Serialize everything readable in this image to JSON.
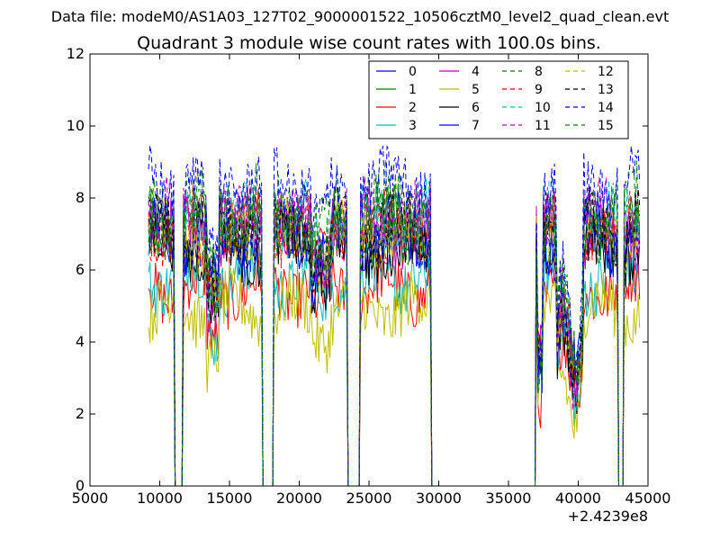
{
  "chart_data": {
    "type": "line",
    "suptitle": "Data file: modeM0/AS1A03_127T02_9000001522_10506cztM0_level2_quad_clean.evt",
    "title": "Quadrant 3 module wise count rates with 100.0s bins.",
    "xlabel": "",
    "ylabel": "",
    "x_offset_label": "+2.4239e8",
    "xlim": [
      5000,
      45000
    ],
    "ylim": [
      0,
      12
    ],
    "xticks": [
      5000,
      10000,
      15000,
      20000,
      25000,
      30000,
      35000,
      40000,
      45000
    ],
    "xtick_labels": [
      "5000",
      "10000",
      "15000",
      "20000",
      "25000",
      "30000",
      "35000",
      "40000",
      "45000"
    ],
    "yticks": [
      0,
      2,
      4,
      6,
      8,
      10,
      12
    ],
    "ytick_labels": [
      "0",
      "2",
      "4",
      "6",
      "8",
      "10",
      "12"
    ],
    "grid": false,
    "legend_position": "top-right",
    "legend_columns": 4,
    "series": [
      {
        "name": "0",
        "color": "#0000ff",
        "dashed": false,
        "base": 6.8
      },
      {
        "name": "1",
        "color": "#008000",
        "dashed": false,
        "base": 7.3
      },
      {
        "name": "2",
        "color": "#ff0000",
        "dashed": false,
        "base": 5.5
      },
      {
        "name": "3",
        "color": "#00bfbf",
        "dashed": false,
        "base": 5.8
      },
      {
        "name": "4",
        "color": "#bf00bf",
        "dashed": false,
        "base": 7.1
      },
      {
        "name": "5",
        "color": "#bfbf00",
        "dashed": false,
        "base": 4.9
      },
      {
        "name": "6",
        "color": "#000000",
        "dashed": false,
        "base": 6.6
      },
      {
        "name": "7",
        "color": "#0000ff",
        "dashed": false,
        "base": 7.0
      },
      {
        "name": "8",
        "color": "#008000",
        "dashed": true,
        "base": 7.9
      },
      {
        "name": "9",
        "color": "#ff0000",
        "dashed": true,
        "base": 7.2
      },
      {
        "name": "10",
        "color": "#00bfbf",
        "dashed": true,
        "base": 7.4
      },
      {
        "name": "11",
        "color": "#bf00bf",
        "dashed": true,
        "base": 7.5
      },
      {
        "name": "12",
        "color": "#bfbf00",
        "dashed": true,
        "base": 7.0
      },
      {
        "name": "13",
        "color": "#000000",
        "dashed": true,
        "base": 7.2
      },
      {
        "name": "14",
        "color": "#0000ff",
        "dashed": true,
        "base": 8.4
      },
      {
        "name": "15",
        "color": "#008000",
        "dashed": true,
        "base": 7.3
      }
    ],
    "on_segments": [
      [
        9200,
        11000
      ],
      [
        11700,
        17300
      ],
      [
        18200,
        23400
      ],
      [
        24400,
        29400
      ],
      [
        37000,
        42800
      ],
      [
        43300,
        44400
      ]
    ],
    "time_range": [
      9200,
      44400
    ],
    "bin_size": 100
  }
}
